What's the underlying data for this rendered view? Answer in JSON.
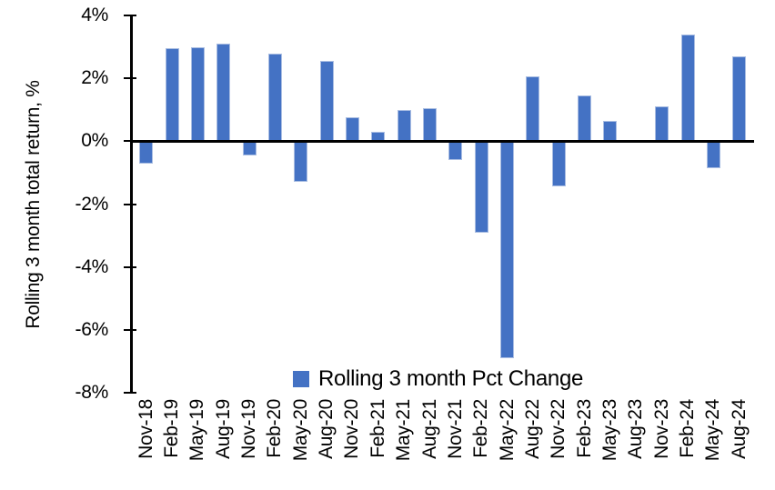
{
  "chart_data": {
    "type": "bar",
    "title": "",
    "xlabel": "",
    "ylabel": "Rolling 3 month total return, %",
    "categories": [
      "Nov-18",
      "Feb-19",
      "May-19",
      "Aug-19",
      "Nov-19",
      "Feb-20",
      "May-20",
      "Aug-20",
      "Nov-20",
      "Feb-21",
      "May-21",
      "Aug-21",
      "Nov-21",
      "Feb-22",
      "May-22",
      "Aug-22",
      "Nov-22",
      "Feb-23",
      "May-23",
      "Aug-23",
      "Nov-23",
      "Feb-24",
      "May-24",
      "Aug-24"
    ],
    "series": [
      {
        "name": "Rolling 3 month Pct Change",
        "values": [
          -0.7,
          2.95,
          3.0,
          3.1,
          -0.45,
          2.8,
          -1.3,
          2.55,
          0.75,
          0.3,
          1.0,
          1.05,
          -0.6,
          -2.9,
          -6.9,
          2.05,
          -1.45,
          1.45,
          0.65,
          0.0,
          1.1,
          3.4,
          -0.85,
          2.7
        ]
      }
    ],
    "ylim": [
      -8,
      4
    ],
    "yticks": {
      "values": [
        4,
        2,
        0,
        -2,
        -4,
        -6,
        -8
      ],
      "labels": [
        "4%",
        "2%",
        "0%",
        "-2%",
        "-4%",
        "-6%",
        "-8%"
      ]
    },
    "grid": false,
    "legend": {
      "label": "Rolling 3 month Pct Change",
      "position": "bottom-center"
    },
    "colors": {
      "bar": "#4472C4",
      "bar_edge": "#A9BDE2",
      "axis": "#000000",
      "text": "#000000",
      "background": "#FFFFFF"
    }
  }
}
